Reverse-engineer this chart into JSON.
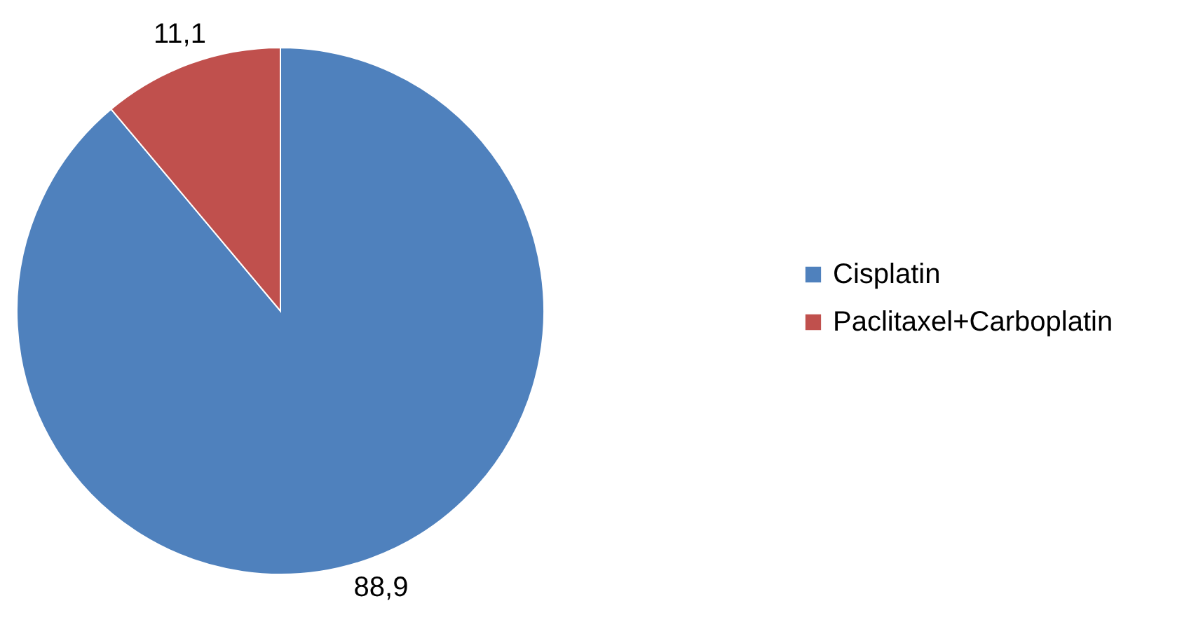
{
  "chart_data": {
    "type": "pie",
    "categories": [
      "Cisplatin",
      "Paclitaxel+Carboplatin"
    ],
    "values": [
      88.9,
      11.1
    ],
    "value_labels": [
      "88,9",
      "11,1"
    ],
    "colors": [
      "#4f81bd",
      "#c0504d"
    ],
    "legend": "right"
  }
}
